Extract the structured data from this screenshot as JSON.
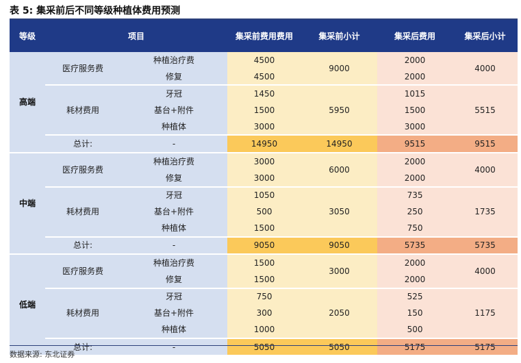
{
  "title": "表 5: 集采前后不同等级种植体费用预测",
  "header": {
    "grade": "等级",
    "item": "项目",
    "pre_cost": "集采前费用费用",
    "pre_subtotal": "集采前小计",
    "post_cost": "集采后费用",
    "post_subtotal": "集采后小计"
  },
  "sections": [
    {
      "grade": "高端",
      "medical": {
        "category": "医疗服务费",
        "rows": [
          {
            "item": "种植治疗费",
            "pre": "4500",
            "post": "2000"
          },
          {
            "item": "修复",
            "pre": "4500",
            "post": "2000"
          }
        ],
        "pre_subtotal": "9000",
        "post_subtotal": "4000"
      },
      "material": {
        "category": "耗材费用",
        "rows": [
          {
            "item": "牙冠",
            "pre": "1450",
            "post": "1015"
          },
          {
            "item": "基台+附件",
            "pre": "1500",
            "post": "1500"
          },
          {
            "item": "种植体",
            "pre": "3000",
            "post": "3000"
          }
        ],
        "pre_subtotal": "5950",
        "post_subtotal": "5515"
      },
      "total": {
        "label": "总计:",
        "item": "-",
        "pre": "14950",
        "pre_subtotal": "14950",
        "post": "9515",
        "post_subtotal": "9515"
      }
    },
    {
      "grade": "中端",
      "medical": {
        "category": "医疗服务费",
        "rows": [
          {
            "item": "种植治疗费",
            "pre": "3000",
            "post": "2000"
          },
          {
            "item": "修复",
            "pre": "3000",
            "post": "2000"
          }
        ],
        "pre_subtotal": "6000",
        "post_subtotal": "4000"
      },
      "material": {
        "category": "耗材费用",
        "rows": [
          {
            "item": "牙冠",
            "pre": "1050",
            "post": "735"
          },
          {
            "item": "基台+附件",
            "pre": "500",
            "post": "250"
          },
          {
            "item": "种植体",
            "pre": "1500",
            "post": "750"
          }
        ],
        "pre_subtotal": "3050",
        "post_subtotal": "1735"
      },
      "total": {
        "label": "总计:",
        "item": "-",
        "pre": "9050",
        "pre_subtotal": "9050",
        "post": "5735",
        "post_subtotal": "5735"
      }
    },
    {
      "grade": "低端",
      "medical": {
        "category": "医疗服务费",
        "rows": [
          {
            "item": "种植治疗费",
            "pre": "1500",
            "post": "2000"
          },
          {
            "item": "修复",
            "pre": "1500",
            "post": "2000"
          }
        ],
        "pre_subtotal": "3000",
        "post_subtotal": "4000"
      },
      "material": {
        "category": "耗材费用",
        "rows": [
          {
            "item": "牙冠",
            "pre": "750",
            "post": "525"
          },
          {
            "item": "基台+附件",
            "pre": "300",
            "post": "150"
          },
          {
            "item": "种植体",
            "pre": "1000",
            "post": "500"
          }
        ],
        "pre_subtotal": "2050",
        "post_subtotal": "1175"
      },
      "total": {
        "label": "总计:",
        "item": "-",
        "pre": "5050",
        "pre_subtotal": "5050",
        "post": "5175",
        "post_subtotal": "5175"
      }
    }
  ],
  "source": "数据来源: 东北证券"
}
